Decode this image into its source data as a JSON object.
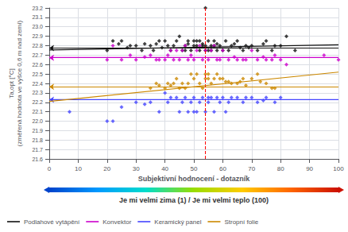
{
  "chart_data": {
    "type": "scatter",
    "xlabel": "Subjektivní hodnocení - dotazník",
    "ylabel": "Ta,opt [°C]\n(změřená hodnota ve výšce 0,6 m nad zemí)",
    "annotation": "Je mi velmi zima (1) / Je mi velmi teplo (100)",
    "xlim": [
      0,
      100
    ],
    "ylim": [
      21.6,
      23.2
    ],
    "xticks": [
      0,
      10,
      20,
      30,
      40,
      50,
      60,
      70,
      80,
      90,
      100
    ],
    "yticks": [
      21.6,
      21.7,
      21.8,
      21.9,
      {
        "value": 22.0,
        "label": "22.0"
      },
      22.1,
      22.2,
      22.3,
      22.4,
      22.5,
      22.6,
      22.7,
      22.8,
      22.9,
      {
        "value": 23.0,
        "label": "23.0"
      },
      23.1,
      23.2
    ],
    "grid": true,
    "legend": "lower left",
    "marker": "diamond",
    "reference_lines": [
      {
        "x": 54,
        "color": "red",
        "line_style": "dashed"
      }
    ],
    "series": [
      {
        "name": "Podlahové vytápění",
        "color": "#111111",
        "x": [
          20,
          22,
          24,
          25,
          27,
          28,
          30,
          32,
          33,
          35,
          36,
          37,
          38,
          39,
          40,
          41,
          42,
          43,
          44,
          45,
          46,
          47,
          47,
          48,
          48,
          49,
          50,
          50,
          51,
          51,
          52,
          52,
          53,
          53,
          54,
          54,
          54,
          55,
          55,
          56,
          56,
          57,
          57,
          58,
          58,
          59,
          60,
          61,
          62,
          63,
          64,
          65,
          66,
          67,
          68,
          69,
          70,
          72,
          74,
          75,
          77,
          78,
          80,
          82,
          85
        ],
        "values": [
          22.75,
          22.85,
          22.82,
          22.85,
          22.78,
          22.8,
          22.8,
          22.75,
          22.82,
          22.8,
          22.75,
          22.82,
          22.85,
          22.78,
          22.85,
          22.8,
          22.75,
          22.8,
          22.85,
          22.9,
          22.75,
          22.8,
          22.75,
          22.85,
          22.82,
          22.75,
          22.8,
          22.85,
          22.85,
          22.8,
          22.75,
          22.85,
          22.8,
          22.82,
          23.2,
          22.75,
          22.8,
          22.75,
          22.85,
          22.8,
          22.75,
          22.85,
          22.8,
          22.75,
          22.82,
          22.8,
          22.75,
          22.85,
          22.75,
          22.8,
          22.82,
          22.85,
          22.78,
          22.75,
          22.8,
          22.78,
          22.8,
          22.75,
          22.82,
          22.85,
          22.75,
          22.8,
          22.8,
          22.9,
          22.75
        ],
        "trend": {
          "x": [
            0,
            100
          ],
          "values": [
            22.755,
            22.81
          ]
        },
        "mean": 22.775
      },
      {
        "name": "Konvektor",
        "color": "#cc00cc",
        "x": [
          20,
          22,
          25,
          28,
          30,
          33,
          35,
          37,
          38,
          40,
          41,
          42,
          43,
          44,
          45,
          46,
          47,
          48,
          49,
          50,
          51,
          52,
          53,
          54,
          55,
          56,
          57,
          58,
          59,
          60,
          62,
          64,
          65,
          67,
          68,
          70,
          72,
          74,
          75,
          77,
          78,
          80,
          82,
          95,
          100
        ],
        "values": [
          22.65,
          22.8,
          22.65,
          22.7,
          22.65,
          22.68,
          22.7,
          22.65,
          22.65,
          22.65,
          22.7,
          22.75,
          22.65,
          22.75,
          22.65,
          22.75,
          22.8,
          22.65,
          22.7,
          22.65,
          22.75,
          22.8,
          22.65,
          22.75,
          22.65,
          22.75,
          22.8,
          22.65,
          22.65,
          22.75,
          22.65,
          22.68,
          22.65,
          22.65,
          22.65,
          22.75,
          22.65,
          22.68,
          22.65,
          22.65,
          22.7,
          22.65,
          22.6,
          22.7,
          22.65
        ],
        "trend": {
          "x": [
            0,
            100
          ],
          "values": [
            22.675,
            22.6745
          ]
        },
        "mean": 22.672
      },
      {
        "name": "Keramický panel",
        "color": "#4444ff",
        "x": [
          7,
          20,
          22,
          25,
          30,
          33,
          35,
          38,
          40,
          41,
          42,
          44,
          45,
          46,
          47,
          48,
          49,
          50,
          50,
          51,
          52,
          53,
          54,
          55,
          55,
          56,
          57,
          58,
          59,
          60,
          61,
          62,
          63,
          65,
          67,
          68,
          70,
          72,
          74,
          75,
          78,
          80
        ],
        "values": [
          22.1,
          22.0,
          22.0,
          22.15,
          22.2,
          22.18,
          22.2,
          22.1,
          22.3,
          22.2,
          22.25,
          22.25,
          22.1,
          22.2,
          22.25,
          22.1,
          22.2,
          22.25,
          22.1,
          22.1,
          22.2,
          22.25,
          22.1,
          22.2,
          22.25,
          22.25,
          22.1,
          22.25,
          22.2,
          22.25,
          22.1,
          22.2,
          22.25,
          22.25,
          22.2,
          22.25,
          22.25,
          22.2,
          22.22,
          22.25,
          22.2,
          22.25
        ],
        "trend": {
          "x": [
            0,
            100
          ],
          "values": [
            22.228,
            22.2285
          ]
        },
        "mean": 22.228
      },
      {
        "name": "Stropní folie",
        "color": "#cc8800",
        "x": [
          35,
          37,
          38,
          40,
          41,
          42,
          43,
          44,
          45,
          46,
          47,
          48,
          49,
          50,
          51,
          52,
          53,
          54,
          54,
          55,
          55,
          56,
          57,
          58,
          59,
          60,
          61,
          62,
          63,
          65,
          66,
          67,
          68,
          70,
          72,
          73,
          75,
          77,
          78
        ],
        "values": [
          22.35,
          22.4,
          22.38,
          22.35,
          22.4,
          22.38,
          22.4,
          22.45,
          22.35,
          22.4,
          22.35,
          22.4,
          22.5,
          22.45,
          22.5,
          22.4,
          22.35,
          22.5,
          22.45,
          22.45,
          22.5,
          22.4,
          22.45,
          22.5,
          22.45,
          22.45,
          22.42,
          22.42,
          22.4,
          22.4,
          22.42,
          22.45,
          22.38,
          22.45,
          22.5,
          22.42,
          22.4,
          22.35,
          22.35
        ],
        "trend": {
          "x": [
            0,
            100
          ],
          "values": [
            22.21,
            22.52
          ]
        },
        "mean": 22.365
      }
    ]
  }
}
